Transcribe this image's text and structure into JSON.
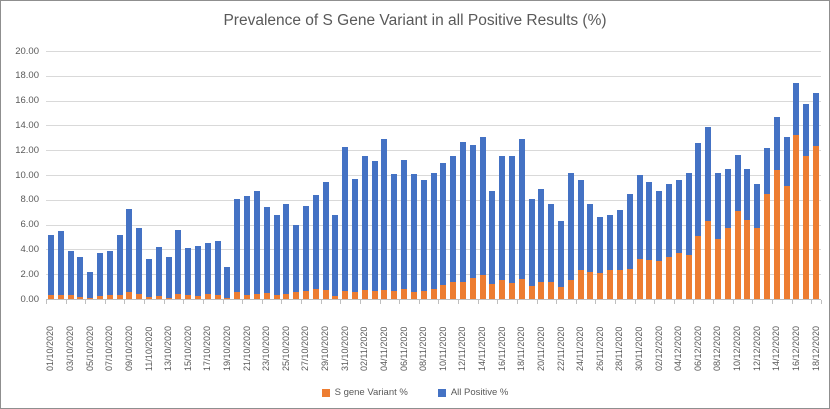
{
  "chart_data": {
    "type": "bar",
    "stacking": "overlay",
    "title": "Prevalence of S Gene Variant in all Positive Results (%)",
    "xlabel": "",
    "ylabel": "",
    "ylim": [
      0,
      20
    ],
    "y_tick_step": 2,
    "y_tick_labels": [
      "20.00",
      "18.00",
      "16.00",
      "14.00",
      "12.00",
      "10.00",
      "8.00",
      "6.00",
      "4.00",
      "2.00",
      "0.00"
    ],
    "grid": true,
    "legend_position": "bottom",
    "x_label_every": 2,
    "colors": {
      "grid": "#d9d9d9",
      "axis": "#bfbfbf",
      "text": "#595959"
    },
    "categories": [
      "01/10/2020",
      "02/10/2020",
      "03/10/2020",
      "04/10/2020",
      "05/10/2020",
      "06/10/2020",
      "07/10/2020",
      "08/10/2020",
      "09/10/2020",
      "10/10/2020",
      "11/10/2020",
      "12/10/2020",
      "13/10/2020",
      "14/10/2020",
      "15/10/2020",
      "16/10/2020",
      "17/10/2020",
      "18/10/2020",
      "19/10/2020",
      "20/10/2020",
      "21/10/2020",
      "22/10/2020",
      "23/10/2020",
      "24/10/2020",
      "25/10/2020",
      "26/10/2020",
      "27/10/2020",
      "28/10/2020",
      "29/10/2020",
      "30/10/2020",
      "31/10/2020",
      "01/11/2020",
      "02/11/2020",
      "03/11/2020",
      "04/11/2020",
      "05/11/2020",
      "06/11/2020",
      "07/11/2020",
      "08/11/2020",
      "09/11/2020",
      "10/11/2020",
      "11/11/2020",
      "12/11/2020",
      "13/11/2020",
      "14/11/2020",
      "15/11/2020",
      "16/11/2020",
      "17/11/2020",
      "18/11/2020",
      "19/11/2020",
      "20/11/2020",
      "21/11/2020",
      "22/11/2020",
      "23/11/2020",
      "24/11/2020",
      "25/11/2020",
      "26/11/2020",
      "27/11/2020",
      "28/11/2020",
      "29/11/2020",
      "30/11/2020",
      "01/12/2020",
      "02/12/2020",
      "03/12/2020",
      "04/12/2020",
      "05/12/2020",
      "06/12/2020",
      "07/12/2020",
      "08/12/2020",
      "09/12/2020",
      "10/12/2020",
      "11/12/2020",
      "12/12/2020",
      "13/12/2020",
      "14/12/2020",
      "15/12/2020",
      "16/12/2020",
      "17/12/2020",
      "18/12/2020"
    ],
    "series": [
      {
        "name": "S gene Variant %",
        "color": "#ED7D31",
        "values": [
          0.3,
          0.3,
          0.35,
          0.15,
          0.12,
          0.23,
          0.3,
          0.3,
          0.55,
          0.4,
          0.15,
          0.23,
          0.08,
          0.4,
          0.3,
          0.26,
          0.4,
          0.3,
          0.1,
          0.55,
          0.36,
          0.42,
          0.5,
          0.36,
          0.44,
          0.55,
          0.63,
          0.77,
          0.71,
          0.28,
          0.63,
          0.55,
          0.69,
          0.63,
          0.71,
          0.63,
          0.82,
          0.55,
          0.63,
          0.82,
          1.1,
          1.4,
          1.4,
          1.7,
          1.9,
          1.25,
          1.5,
          1.3,
          1.6,
          1.05,
          1.35,
          1.35,
          1.0,
          1.5,
          2.3,
          2.15,
          2.1,
          2.35,
          2.3,
          2.45,
          3.2,
          3.15,
          3.1,
          3.35,
          3.75,
          3.55,
          5.05,
          6.3,
          4.85,
          5.7,
          7.1,
          6.4,
          5.7,
          8.5,
          10.4,
          9.15,
          13.25,
          11.55,
          12.3
        ]
      },
      {
        "name": "All Positive %",
        "color": "#4472C4",
        "values": [
          5.2,
          5.5,
          3.9,
          3.4,
          2.2,
          3.7,
          3.9,
          5.2,
          7.3,
          5.7,
          3.2,
          4.2,
          3.4,
          5.6,
          4.1,
          4.3,
          4.5,
          4.7,
          2.6,
          8.1,
          8.3,
          8.7,
          7.4,
          6.8,
          7.7,
          6.0,
          7.5,
          8.4,
          9.4,
          6.8,
          12.3,
          9.7,
          11.5,
          11.1,
          12.9,
          10.1,
          11.2,
          10.1,
          9.6,
          10.2,
          11.0,
          11.5,
          12.7,
          12.4,
          13.1,
          8.7,
          11.5,
          11.5,
          12.9,
          8.1,
          8.9,
          7.7,
          6.3,
          10.2,
          9.6,
          7.7,
          6.6,
          6.8,
          7.2,
          8.5,
          10.0,
          9.4,
          8.7,
          9.3,
          9.6,
          10.2,
          12.6,
          13.9,
          10.2,
          10.5,
          11.6,
          10.5,
          9.3,
          12.2,
          14.7,
          13.1,
          17.4,
          15.7,
          16.6
        ]
      }
    ]
  }
}
